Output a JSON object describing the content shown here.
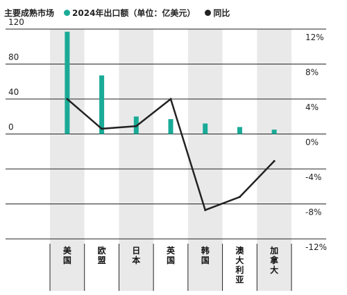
{
  "legend": {
    "title": "主要成熟市场",
    "bar_label": "2024年出口额（单位：亿美元）",
    "line_label": "同比"
  },
  "chart_data": {
    "type": "bar",
    "title": "",
    "categories": [
      "美国",
      "欧盟",
      "日本",
      "英国",
      "韩国",
      "澳大利亚",
      "加拿大"
    ],
    "series": [
      {
        "name": "2024年出口额（单位：亿美元）",
        "kind": "bar",
        "axis": "left",
        "color": "#1aab97",
        "values": [
          117,
          67,
          20,
          17,
          12,
          8,
          5
        ]
      },
      {
        "name": "同比",
        "kind": "line",
        "axis": "right",
        "unit": "%",
        "color": "#222222",
        "values": [
          4.0,
          0.6,
          0.9,
          4.0,
          -8.7,
          -7.2,
          -3.1
        ]
      }
    ],
    "y_left": {
      "ticks": [
        120,
        80,
        40,
        0
      ],
      "ylim": [
        -120,
        120
      ]
    },
    "y_right": {
      "ticks": [
        "12%",
        "8%",
        "4%",
        "0%",
        "-4%",
        "-8%",
        "-12%"
      ],
      "ylim": [
        -12,
        12
      ]
    },
    "grid": true,
    "legend_position": "top-left"
  }
}
